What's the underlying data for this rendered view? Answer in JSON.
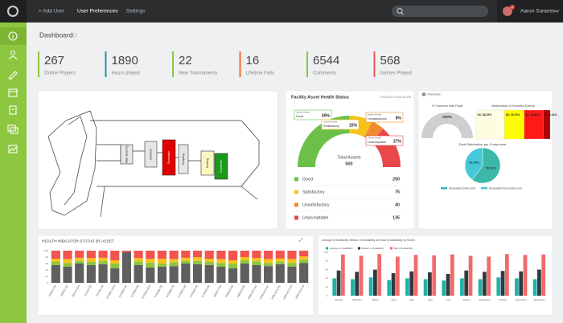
{
  "nav": {
    "items": [
      "+ Add User",
      "User Preferences",
      "Settings"
    ],
    "user": "Aaron Saranes",
    "badge": "2"
  },
  "page": {
    "title": "Dashboard"
  },
  "stats": [
    {
      "value": 267,
      "label": "Online Players",
      "color": "#8dc63f"
    },
    {
      "value": 1890,
      "label": "Hours played",
      "color": "#2a8fa8"
    },
    {
      "value": 22,
      "label": "New Tournaments",
      "color": "#8dc63f"
    },
    {
      "value": 16,
      "label": "Lifetime Fails",
      "color": "#f26b3a"
    },
    {
      "value": 6544,
      "label": "Comments",
      "color": "#8dc63f"
    },
    {
      "value": 568,
      "label": "Games Played",
      "color": "#f2544e"
    }
  ],
  "turbine": {
    "components": [
      {
        "label": "Main Bearing",
        "color": "#e6e6e6"
      },
      {
        "label": "Gearbox",
        "color": "#e6e6e6"
      },
      {
        "label": "Generator",
        "color": "#e00000"
      },
      {
        "label": "Coupling",
        "color": "#e6e6e6"
      },
      {
        "label": "Cooling",
        "color": "#f7f7c0"
      },
      {
        "label": "Converter",
        "color": "#1a9a1a"
      }
    ]
  },
  "asset_health": {
    "title": "Facility Asset Health Status",
    "timestamp": "7/28/2019 8:34:44 AM",
    "callout": "Assets Health",
    "total_label": "Total Assets",
    "total": 500,
    "categories": [
      "Good",
      "Satisfactory",
      "Unsatisfactory",
      "Unacceptable"
    ],
    "values": [
      250,
      75,
      40,
      135
    ],
    "value_labels": [
      "50%",
      "15%",
      "8%",
      "27%"
    ],
    "colors": [
      "#6cc04a",
      "#f7c21b",
      "#f28a30",
      "#e8484a"
    ]
  },
  "overview": {
    "title": "Overview",
    "fault_title": "% Turbines with Fault",
    "fault_label": "200%",
    "severity_title": "Distribution of Severity Events",
    "severity": {
      "values": [
        38.29,
        26.7,
        25.6,
        9.41
      ],
      "value_labels": [
        "S4: 38.29%",
        "S3: 26.70%",
        "S2: 25.60%",
        "S1: 9.41%"
      ],
      "colors": [
        "#fffde0",
        "#ffff00",
        "#ff1a1a",
        "#b00000"
      ]
    },
    "pie_title": "Fault Distribution per Component",
    "pie": {
      "categories": [
        "Generator Drive End",
        "Generator Non-Drive End"
      ],
      "values": [
        59.91,
        40.09
      ],
      "value_labels": [
        "59.91%",
        "40.09%"
      ],
      "colors": [
        "#3bb8a8",
        "#45c8d8"
      ]
    }
  },
  "health_chart": {
    "type": "bar",
    "title": "HEALTH INDICATOR STATUS BY ASSET",
    "categories": [
      "100851-GE",
      "100852-GE",
      "20019-GEA",
      "101104-GE",
      "101105-GE",
      "S7G801-GEA",
      "S7G802-GE",
      "S7G803-GE",
      "S7G804-GEA",
      "S7G805-GE",
      "S7G806-GE",
      "S7G807-GE",
      "S7G808-GE",
      "S7G809-GE",
      "AB0017-GE",
      "AB0018-GE",
      "AB0019-GE",
      "HNB-ACH-AE",
      "HNB-ACH-AF",
      "HNB-ACH-AG",
      "HNB-ACH-AH",
      "HNB-ACH-AJ"
    ],
    "ylim": [
      0,
      100
    ],
    "yticks": [
      0,
      20,
      40,
      60,
      80,
      100
    ],
    "series": [
      {
        "color": "#5f5f5f",
        "values": [
          55,
          50,
          60,
          55,
          58,
          45,
          95,
          55,
          48,
          50,
          52,
          60,
          58,
          55,
          50,
          45,
          60,
          55,
          52,
          58,
          50,
          62
        ]
      },
      {
        "color": "#8dc63f",
        "values": [
          10,
          12,
          8,
          10,
          10,
          15,
          0,
          12,
          15,
          10,
          12,
          8,
          10,
          10,
          12,
          15,
          10,
          12,
          10,
          8,
          12,
          10
        ]
      },
      {
        "color": "#f7c21b",
        "values": [
          10,
          12,
          10,
          12,
          10,
          10,
          0,
          10,
          12,
          15,
          10,
          10,
          12,
          10,
          12,
          10,
          10,
          10,
          12,
          10,
          12,
          10
        ]
      },
      {
        "color": "#f2544e",
        "values": [
          25,
          26,
          22,
          23,
          22,
          30,
          5,
          23,
          25,
          25,
          26,
          22,
          20,
          25,
          26,
          30,
          20,
          23,
          26,
          24,
          26,
          18
        ]
      }
    ]
  },
  "availability_chart": {
    "type": "bar",
    "title": "Average of Availability, Median of Availability and Max of Availability by Month",
    "categories": [
      "January",
      "February",
      "March",
      "April",
      "May",
      "June",
      "July",
      "August",
      "September",
      "October",
      "November",
      "December"
    ],
    "ylim": [
      0,
      100
    ],
    "yticks": [
      0,
      20,
      40,
      60,
      80,
      100
    ],
    "series": [
      {
        "name": "Average of Availability",
        "color": "#1fb3a6",
        "values": [
          40,
          38,
          42,
          36,
          40,
          38,
          35,
          40,
          38,
          42,
          40,
          38
        ]
      },
      {
        "name": "Median of Availability",
        "color": "#333a3f",
        "values": [
          58,
          55,
          60,
          52,
          56,
          54,
          50,
          58,
          55,
          57,
          56,
          60
        ]
      },
      {
        "name": "Max of Availability",
        "color": "#f26a6a",
        "values": [
          95,
          92,
          96,
          90,
          94,
          93,
          95,
          92,
          90,
          96,
          94,
          95
        ]
      }
    ]
  }
}
